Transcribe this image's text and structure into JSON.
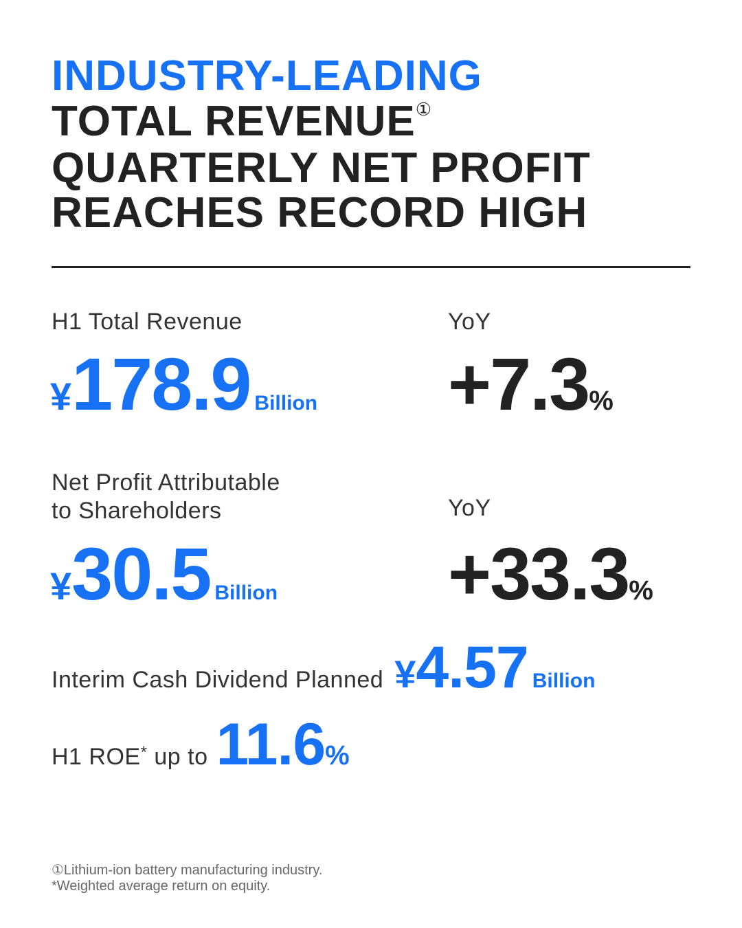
{
  "headline": {
    "line1": "INDUSTRY-LEADING",
    "line2": "TOTAL REVENUE",
    "line2_mark": "①",
    "line3": "QUARTERLY NET PROFIT",
    "line4": "REACHES RECORD HIGH"
  },
  "revenue": {
    "label": "H1 Total Revenue",
    "currency": "¥",
    "value": "178.9",
    "unit": "Billion",
    "yoy_label": "YoY",
    "yoy_value": "+7.3",
    "yoy_unit": "%"
  },
  "net_profit": {
    "label_line1": "Net Profit Attributable",
    "label_line2": "to Shareholders",
    "currency": "¥",
    "value": "30.5",
    "unit": "Billion",
    "yoy_label": "YoY",
    "yoy_value": "+33.3",
    "yoy_unit": "%"
  },
  "dividend": {
    "label": "Interim Cash Dividend Planned",
    "currency": "¥",
    "value": "4.57",
    "unit": "Billion"
  },
  "roe": {
    "label_prefix": "H1 ROE",
    "label_mark": "*",
    "label_suffix": "up to",
    "value": "11.6",
    "unit": "%"
  },
  "footnotes": [
    "①Lithium-ion battery manufacturing industry.",
    "*Weighted average return on equity."
  ],
  "colors": {
    "accent": "#1671f5",
    "text": "#222222"
  }
}
